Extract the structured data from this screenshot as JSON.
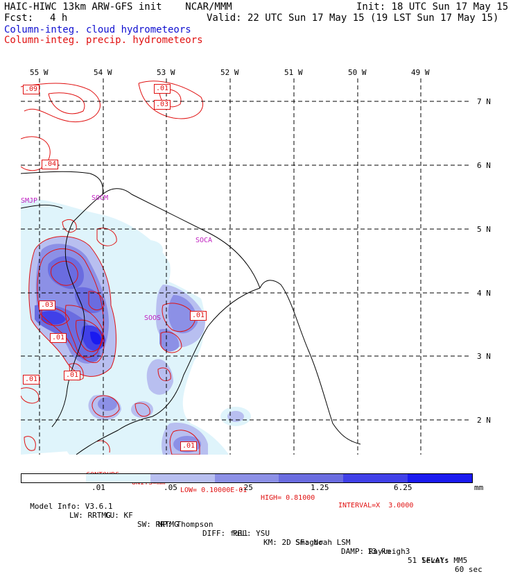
{
  "header": {
    "left_line1": "HAIC-HIWC 13km ARW-GFS init    NCAR/MMM",
    "fcst_label": "Fcst:",
    "fcst_value": "4 h",
    "init": "Init: 18 UTC Sun 17 May 15",
    "valid": "Valid: 22 UTC Sun 17 May 15 (19 LST Sun 17 May 15)",
    "field_cloud": "Column-integ. cloud hydrometeors",
    "field_precip": "Column-integ. precip. hydrometeors"
  },
  "colors": {
    "cloud": "#1010d0",
    "precip": "#e01010",
    "station": "#c020c0",
    "bins": [
      "#ffffff",
      "#dff4fb",
      "#b8bff0",
      "#8c90e6",
      "#6a6ce0",
      "#4040e8",
      "#1a1af0"
    ]
  },
  "map": {
    "lon_labels": [
      "55 W",
      "54 W",
      "53 W",
      "52 W",
      "51 W",
      "50 W",
      "49 W"
    ],
    "lat_labels": [
      "7 N",
      "6 N",
      "5 N",
      "4 N",
      "3 N",
      "2 N"
    ],
    "stations": [
      {
        "code": "SMJP"
      },
      {
        "code": "SOCM"
      },
      {
        "code": "SOCA"
      },
      {
        "code": "SOOS"
      }
    ],
    "contour_tags": [
      ".09",
      ".01",
      ".03",
      ".04",
      ".03",
      ".01",
      ".01",
      ".01",
      ".01",
      ".01"
    ]
  },
  "contour_info": {
    "contours": "CONTOURS:",
    "units": "UNITS=mm",
    "low": "LOW= 0.10000E-01",
    "high": "HIGH= 0.81000",
    "interval": "INTERVAL=X  3.0000"
  },
  "colorbar": {
    "ticks": [
      ".01",
      ".05",
      ".25",
      "1.25",
      "6.25"
    ],
    "unit": "mm"
  },
  "footer": {
    "line1": [
      "Model Info: V3.6.1",
      "CU: KF",
      "MP: Thompson",
      "PBL: YSU",
      "SF: Noah LSM",
      "13 km",
      "51 levels",
      "60 sec"
    ],
    "line2": [
      "LW: RRTMG",
      "SW: RRTMG",
      "DIFF: full",
      "KM: 2D Smagor",
      "DAMP: Rayleigh3",
      "SFLAY: MM5"
    ]
  }
}
